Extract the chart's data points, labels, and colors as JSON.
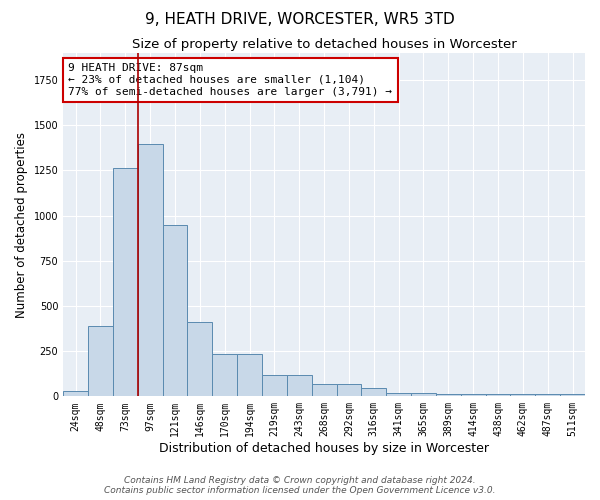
{
  "title": "9, HEATH DRIVE, WORCESTER, WR5 3TD",
  "subtitle": "Size of property relative to detached houses in Worcester",
  "xlabel": "Distribution of detached houses by size in Worcester",
  "ylabel": "Number of detached properties",
  "bar_labels": [
    "24sqm",
    "48sqm",
    "73sqm",
    "97sqm",
    "121sqm",
    "146sqm",
    "170sqm",
    "194sqm",
    "219sqm",
    "243sqm",
    "268sqm",
    "292sqm",
    "316sqm",
    "341sqm",
    "365sqm",
    "389sqm",
    "414sqm",
    "438sqm",
    "462sqm",
    "487sqm",
    "511sqm"
  ],
  "bar_values": [
    30,
    390,
    1265,
    1395,
    950,
    410,
    235,
    235,
    120,
    120,
    70,
    70,
    45,
    20,
    20,
    15,
    15,
    15,
    15,
    15,
    15
  ],
  "bar_color": "#c8d8e8",
  "bar_edgecolor": "#5a8ab0",
  "vline_color": "#aa0000",
  "annotation_text": "9 HEATH DRIVE: 87sqm\n← 23% of detached houses are smaller (1,104)\n77% of semi-detached houses are larger (3,791) →",
  "annotation_box_color": "#ffffff",
  "annotation_box_edgecolor": "#cc0000",
  "ylim": [
    0,
    1900
  ],
  "background_color": "#e8eef5",
  "footer_text": "Contains HM Land Registry data © Crown copyright and database right 2024.\nContains public sector information licensed under the Open Government Licence v3.0.",
  "title_fontsize": 11,
  "subtitle_fontsize": 9.5,
  "ylabel_fontsize": 8.5,
  "xlabel_fontsize": 9,
  "tick_fontsize": 7,
  "footer_fontsize": 6.5,
  "annot_fontsize": 8,
  "vline_x_index": 2.5
}
